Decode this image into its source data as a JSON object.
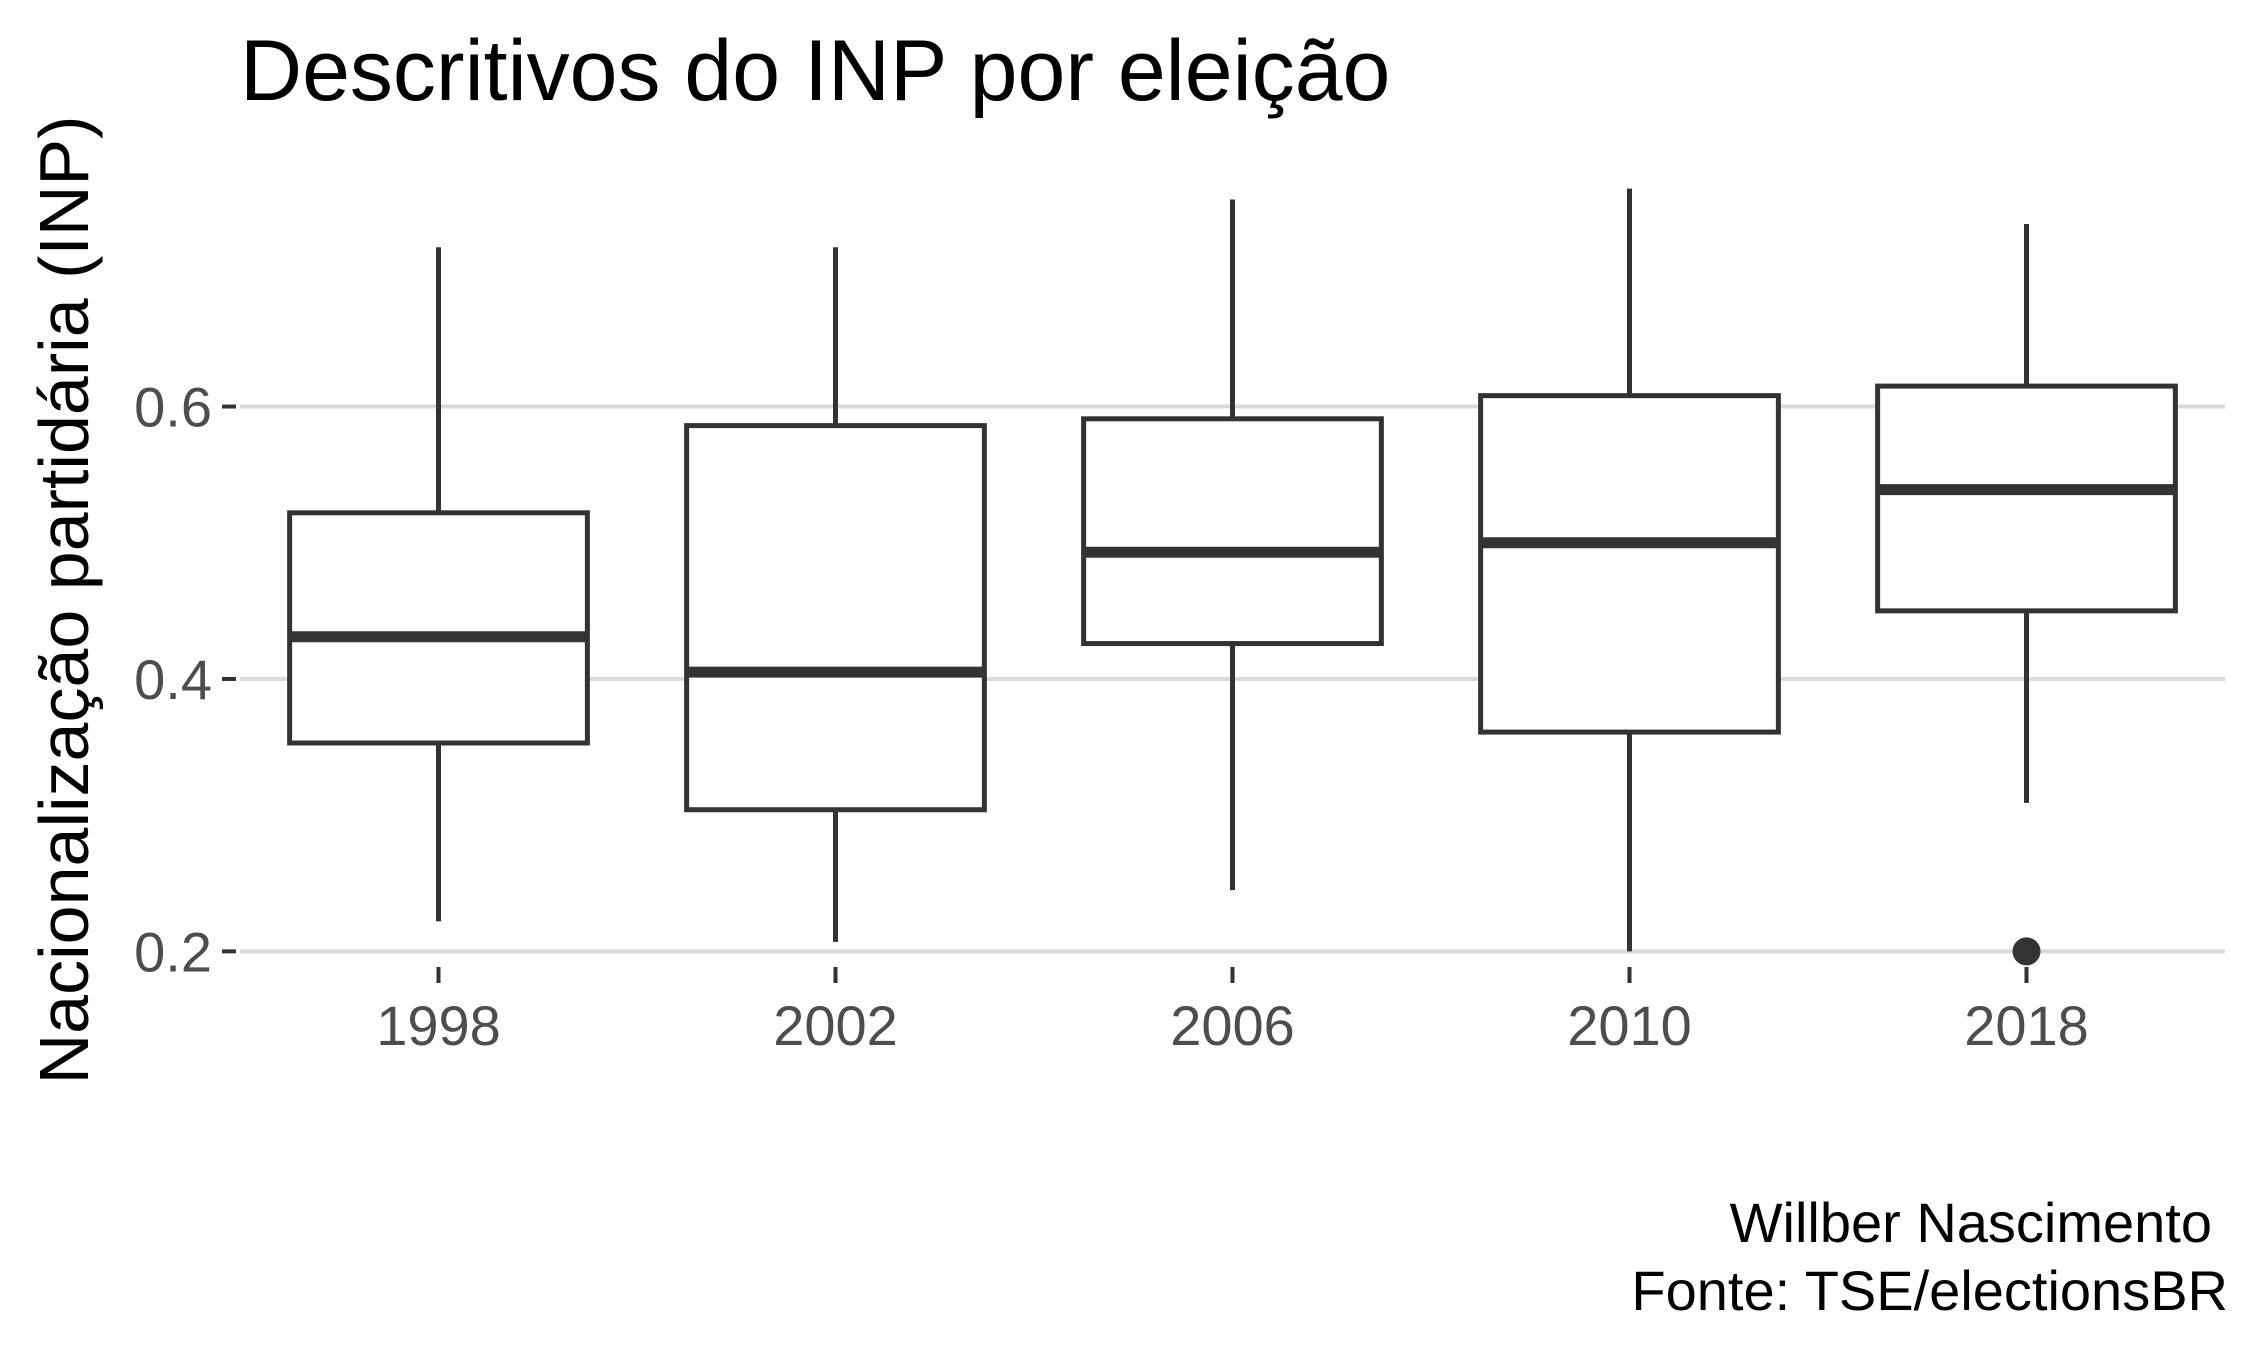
{
  "chart_data": {
    "type": "boxplot",
    "title": "Descritivos do INP por eleição",
    "xlabel": "",
    "ylabel": "Nacionalização partidária (INP)",
    "caption": [
      "Willber Nascimento",
      "Fonte: TSE/electionsBR"
    ],
    "categories": [
      "1998",
      "2002",
      "2006",
      "2010",
      "2018"
    ],
    "y_ticks": [
      0.2,
      0.4,
      0.6
    ],
    "y_tick_labels": [
      "0.2",
      "0.4",
      "0.6"
    ],
    "ylim": [
      0.19,
      0.77
    ],
    "grid": "horizontal-major",
    "legend": "none",
    "boxes": [
      {
        "category": "1998",
        "whisker_low": 0.222,
        "q1": 0.353,
        "median": 0.431,
        "q3": 0.522,
        "whisker_high": 0.717,
        "outliers": []
      },
      {
        "category": "2002",
        "whisker_low": 0.207,
        "q1": 0.304,
        "median": 0.405,
        "q3": 0.586,
        "whisker_high": 0.717,
        "outliers": []
      },
      {
        "category": "2006",
        "whisker_low": 0.245,
        "q1": 0.426,
        "median": 0.493,
        "q3": 0.591,
        "whisker_high": 0.752,
        "outliers": []
      },
      {
        "category": "2010",
        "whisker_low": 0.2,
        "q1": 0.361,
        "median": 0.5,
        "q3": 0.608,
        "whisker_high": 0.76,
        "outliers": []
      },
      {
        "category": "2018",
        "whisker_low": 0.309,
        "q1": 0.45,
        "median": 0.539,
        "q3": 0.615,
        "whisker_high": 0.734,
        "outliers": [
          0.2
        ]
      }
    ]
  }
}
